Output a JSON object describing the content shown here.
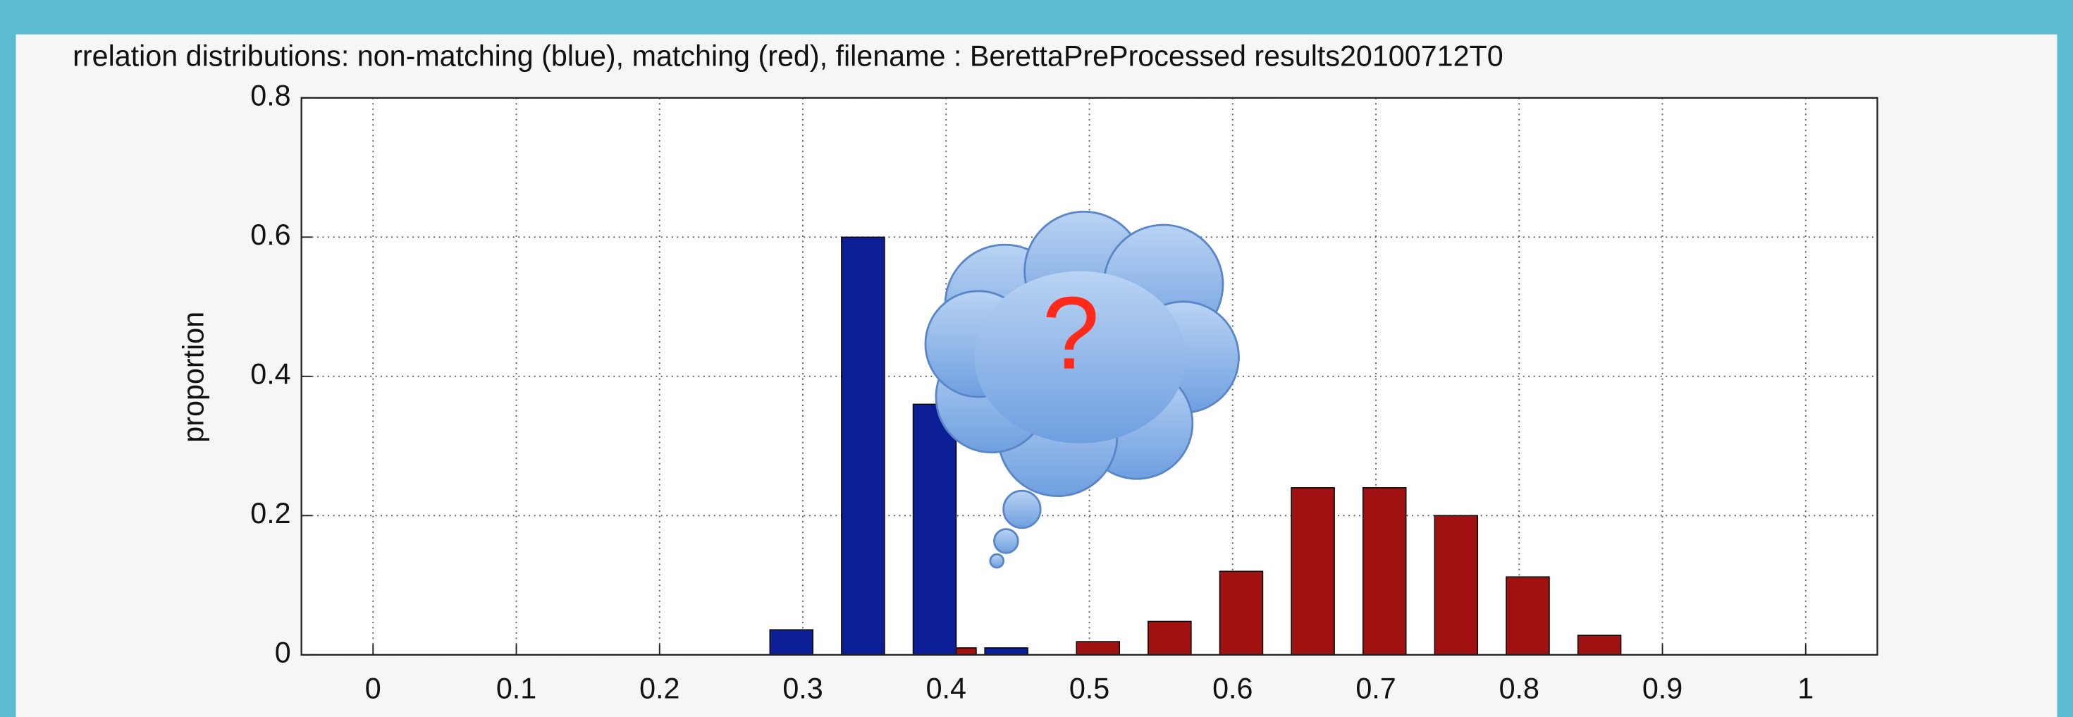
{
  "chart_data": {
    "type": "bar",
    "title": "rrelation distributions: non-matching (blue), matching (red), filename : BerettaPreProcessed results20100712T0",
    "y_label": "proportion",
    "annotation": "?",
    "x": [
      0.3,
      0.35,
      0.4,
      0.45,
      0.5,
      0.55,
      0.6,
      0.65,
      0.7,
      0.75,
      0.8,
      0.85
    ],
    "series": [
      {
        "color": "#0d1f96",
        "values": [
          0.036,
          0.6,
          0.36,
          0.01,
          0,
          0,
          0,
          0,
          0,
          0,
          0,
          0
        ]
      },
      {
        "color": "#a01212",
        "values": [
          0,
          0,
          0.01,
          0,
          0.019,
          0.048,
          0.12,
          0.24,
          0.24,
          0.2,
          0.112,
          0.028
        ]
      }
    ],
    "xlim": [
      -0.05,
      1.05
    ],
    "xticks": [
      0,
      0.1,
      0.2,
      0.3,
      0.4,
      0.5,
      0.6,
      0.7,
      0.8,
      0.9,
      1
    ],
    "ylim": [
      0,
      0.8
    ],
    "yticks": [
      0,
      0.2,
      0.4,
      0.6,
      0.8
    ],
    "grid": true
  }
}
